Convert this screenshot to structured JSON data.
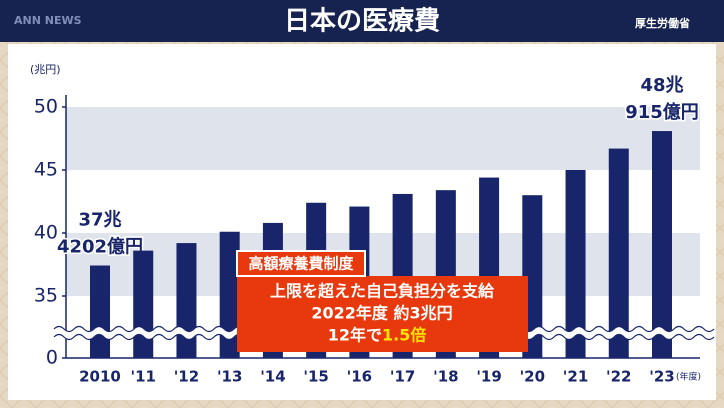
{
  "logo": "ANN NEWS",
  "source": "厚生労働省",
  "chart_data": {
    "type": "bar",
    "title": "日本の医療費",
    "y_unit": "(兆円)",
    "x_unit": "(年度)",
    "categories": [
      "2010",
      "'11",
      "'12",
      "'13",
      "'14",
      "'15",
      "'16",
      "'17",
      "'18",
      "'19",
      "'20",
      "'21",
      "'22",
      "'23"
    ],
    "values": [
      37.4202,
      38.6,
      39.2,
      40.1,
      40.8,
      42.4,
      42.1,
      43.1,
      43.4,
      44.4,
      43.0,
      45.0,
      46.7,
      48.0915
    ],
    "value_labels": [
      [
        "37兆",
        "4202億円"
      ],
      null,
      null,
      null,
      null,
      null,
      null,
      null,
      null,
      null,
      null,
      null,
      null,
      [
        "48兆",
        "915億円"
      ]
    ],
    "color": "#18256a",
    "ylim": [
      0,
      50
    ],
    "yticks": [
      0,
      35,
      40,
      45,
      50
    ],
    "axis_break": [
      0,
      35
    ],
    "banded": true,
    "annotation": {
      "title": "高額療養費制度",
      "lines": [
        "上限を超えた自己負担分を支給",
        "2022年度 約3兆円"
      ],
      "last_line": "12年で",
      "emphasis": "1.5倍"
    }
  }
}
